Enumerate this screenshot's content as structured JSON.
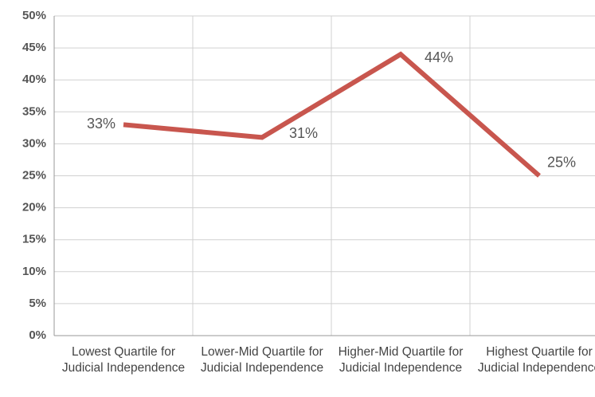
{
  "chart_data": {
    "type": "line",
    "categories": [
      "Lowest Quartile for Judicial Independence",
      "Lower-Mid Quartile for Judicial Independence",
      "Higher-Mid Quartile for Judicial Independence",
      "Highest Quartile for Judicial Independence"
    ],
    "series": [
      {
        "name": null,
        "color": "#c8564e",
        "values": [
          33,
          31,
          44,
          25
        ],
        "value_labels": [
          "33%",
          "31%",
          "44%",
          "25%"
        ]
      }
    ],
    "ylim": [
      0,
      50
    ],
    "yticks": [
      {
        "value": 0,
        "label": "0%"
      },
      {
        "value": 5,
        "label": "5%"
      },
      {
        "value": 10,
        "label": "10%"
      },
      {
        "value": 15,
        "label": "15%"
      },
      {
        "value": 20,
        "label": "20%"
      },
      {
        "value": 25,
        "label": "25%"
      },
      {
        "value": 30,
        "label": "30%"
      },
      {
        "value": 35,
        "label": "35%"
      },
      {
        "value": 40,
        "label": "40%"
      },
      {
        "value": 45,
        "label": "45%"
      },
      {
        "value": 50,
        "label": "50%"
      }
    ],
    "grid": true
  }
}
